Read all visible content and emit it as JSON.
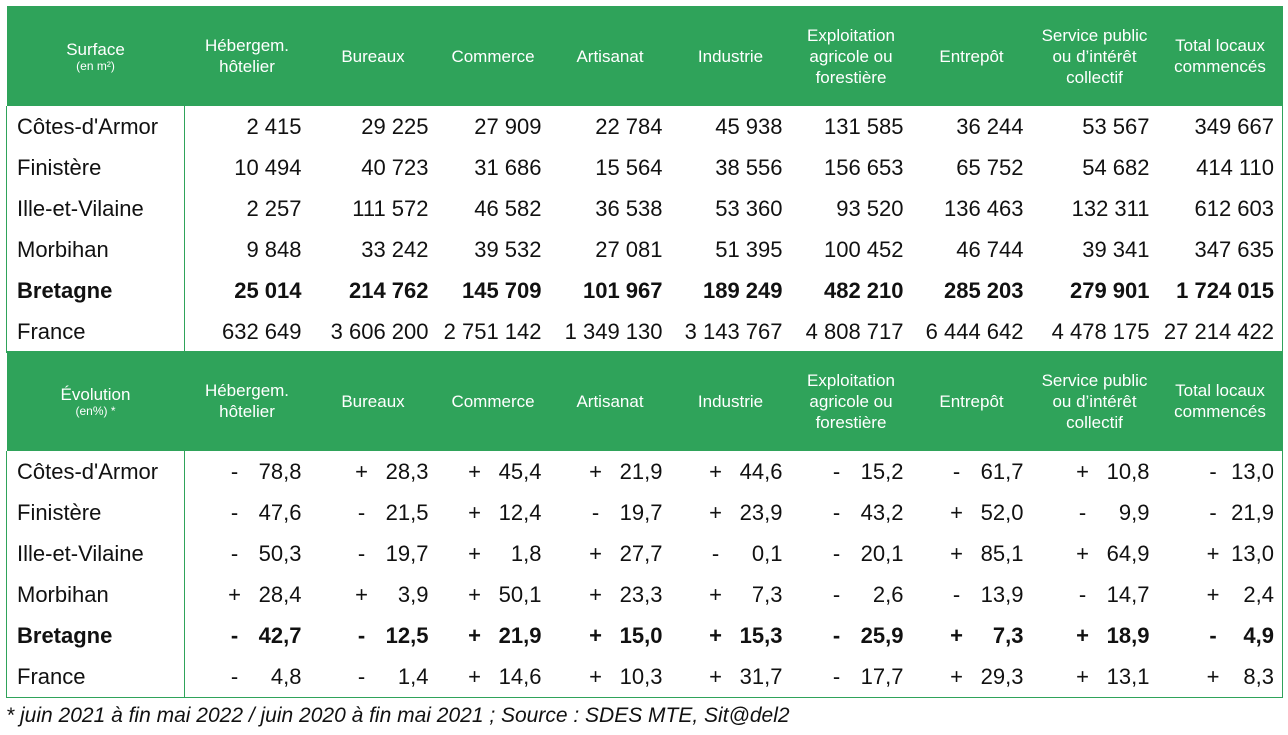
{
  "surface": {
    "title": "Surface",
    "unit": "(en m²)",
    "columns": [
      "Hébergem. hôtelier",
      "Bureaux",
      "Commerce",
      "Artisanat",
      "Industrie",
      "Exploitation agricole ou forestière",
      "Entrepôt",
      "Service public ou d’intérêt collectif",
      "Total locaux commencés"
    ],
    "rows": [
      {
        "label": "Côtes-d'Armor",
        "values": [
          "2 415",
          "29 225",
          "27 909",
          "22 784",
          "45 938",
          "131 585",
          "36 244",
          "53 567",
          "349 667"
        ]
      },
      {
        "label": "Finistère",
        "values": [
          "10 494",
          "40 723",
          "31 686",
          "15 564",
          "38 556",
          "156 653",
          "65 752",
          "54 682",
          "414 110"
        ]
      },
      {
        "label": "Ille-et-Vilaine",
        "values": [
          "2 257",
          "111 572",
          "46 582",
          "36 538",
          "53 360",
          "93 520",
          "136 463",
          "132 311",
          "612 603"
        ]
      },
      {
        "label": "Morbihan",
        "values": [
          "9 848",
          "33 242",
          "39 532",
          "27 081",
          "51 395",
          "100 452",
          "46 744",
          "39 341",
          "347 635"
        ]
      },
      {
        "label": "Bretagne",
        "values": [
          "25 014",
          "214 762",
          "145 709",
          "101 967",
          "189 249",
          "482 210",
          "285 203",
          "279 901",
          "1 724 015"
        ]
      },
      {
        "label": "France",
        "values": [
          "632 649",
          "3 606 200",
          "2 751 142",
          "1 349 130",
          "3 143 767",
          "4 808 717",
          "6 444 642",
          "4 478 175",
          "27 214 422"
        ]
      }
    ]
  },
  "evolution": {
    "title": "Évolution",
    "unit": "(en%) *",
    "columns": [
      "Hébergem. hôtelier",
      "Bureaux",
      "Commerce",
      "Artisanat",
      "Industrie",
      "Exploitation agricole ou forestière",
      "Entrepôt",
      "Service public ou d’intérêt collectif",
      "Total locaux commencés"
    ],
    "rows": [
      {
        "label": "Côtes-d'Armor",
        "signs": [
          "-",
          "+",
          "+",
          "+",
          "+",
          "-",
          "-",
          "+",
          "-"
        ],
        "values": [
          "78,8",
          "28,3",
          "45,4",
          "21,9",
          "44,6",
          "15,2",
          "61,7",
          "10,8",
          "13,0"
        ]
      },
      {
        "label": "Finistère",
        "signs": [
          "-",
          "-",
          "+",
          "-",
          "+",
          "-",
          "+",
          "-",
          "-"
        ],
        "values": [
          "47,6",
          "21,5",
          "12,4",
          "19,7",
          "23,9",
          "43,2",
          "52,0",
          "9,9",
          "21,9"
        ]
      },
      {
        "label": "Ille-et-Vilaine",
        "signs": [
          "-",
          "-",
          "+",
          "+",
          "-",
          "-",
          "+",
          "+",
          "+"
        ],
        "values": [
          "50,3",
          "19,7",
          "1,8",
          "27,7",
          "0,1",
          "20,1",
          "85,1",
          "64,9",
          "13,0"
        ]
      },
      {
        "label": "Morbihan",
        "signs": [
          "+",
          "+",
          "+",
          "+",
          "+",
          "-",
          "-",
          "-",
          "+"
        ],
        "values": [
          "28,4",
          "3,9",
          "50,1",
          "23,3",
          "7,3",
          "2,6",
          "13,9",
          "14,7",
          "2,4"
        ]
      },
      {
        "label": "Bretagne",
        "signs": [
          "-",
          "-",
          "+",
          "+",
          "+",
          "-",
          "+",
          "+",
          "-"
        ],
        "values": [
          "42,7",
          "12,5",
          "21,9",
          "15,0",
          "15,3",
          "25,9",
          "7,3",
          "18,9",
          "4,9"
        ]
      },
      {
        "label": "France",
        "signs": [
          "-",
          "-",
          "+",
          "+",
          "+",
          "-",
          "+",
          "+",
          "+"
        ],
        "values": [
          "4,8",
          "1,4",
          "14,6",
          "10,3",
          "31,7",
          "17,7",
          "29,3",
          "13,1",
          "8,3"
        ]
      }
    ]
  },
  "footnote": "* juin 2021 à fin mai 2022 / juin 2020 à fin mai 2021 ; Source : SDES MTE, Sit@del2",
  "colors": {
    "header_bg": "#2fa35a",
    "header_text": "#ffffff"
  }
}
